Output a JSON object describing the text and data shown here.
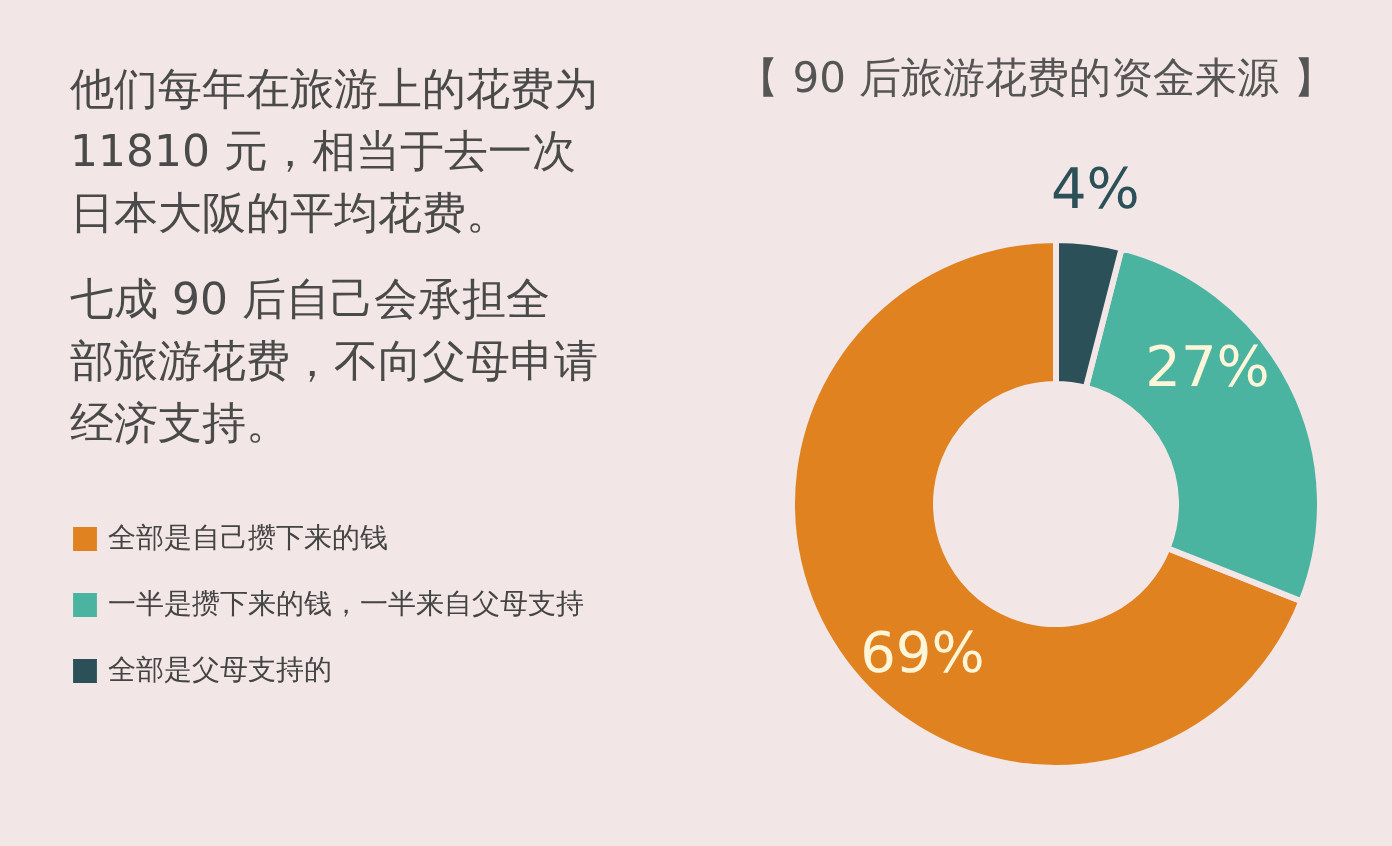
{
  "chart_data": {
    "type": "donut",
    "title": "【 90 后旅游花费的资金来源 】",
    "categories": [
      "全部是自己攒下来的钱",
      "一半是攒下来的钱，一半来自父母支持",
      "全部是父母支持的"
    ],
    "values": [
      69,
      27,
      4
    ],
    "colors": [
      "#e0821f",
      "#4bb4a0",
      "#2c5058"
    ],
    "value_labels": [
      "69%",
      "27%",
      "4%"
    ],
    "legend": "left",
    "annotations": [
      "他们每年在旅游上的花费为11810 元，相当于去一次日本大阪的平均花费。",
      "七成 90 后自己会承担全部旅游花费，不向父母申请经济支持。"
    ]
  }
}
